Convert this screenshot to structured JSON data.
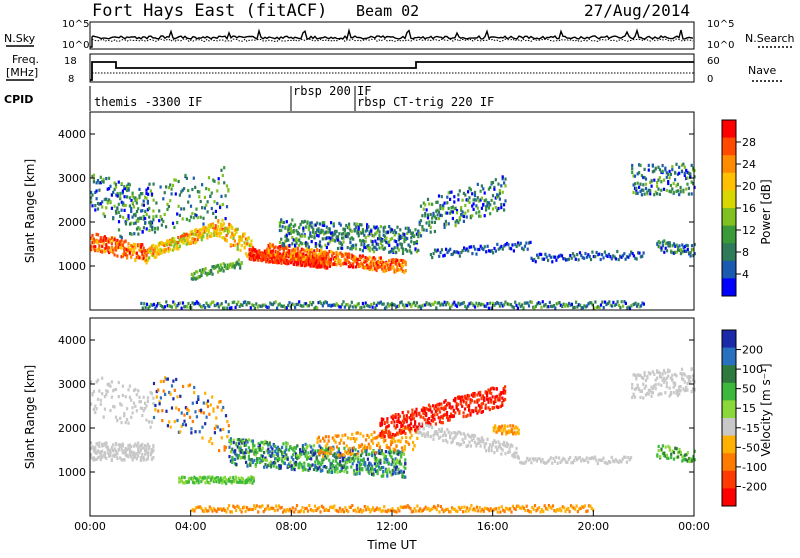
{
  "header": {
    "title": "Fort Hays East (fitACF)",
    "beam": "Beam 02",
    "date": "27/Aug/2014"
  },
  "top_panels": {
    "nsky_label": "N.Sky",
    "nsearch_label": "N.Search",
    "freq_label_1": "Freq.",
    "freq_label_2": "[MHz]",
    "nave_label": "Nave",
    "cpid_label": "CPID",
    "nsky_ticks": [
      "10^5",
      "10^0"
    ],
    "nsearch_ticks": [
      "10^5",
      "10^0"
    ],
    "freq_ticks": [
      "18",
      "8"
    ],
    "nave_ticks": [
      "60",
      "0"
    ]
  },
  "cpid_segments": [
    {
      "label": "themis -3300 IF",
      "start_hour": 0.0
    },
    {
      "label": "rbsp 200",
      "start_hour": 8.0
    },
    {
      "label": "IF",
      "start_hour": 10.25
    },
    {
      "label": "rbsp CT-trig 220 IF",
      "start_hour": 10.25
    }
  ],
  "chart_data": [
    {
      "type": "heatmap",
      "name": "power",
      "ylabel": "Slant Range [km]",
      "yticks": [
        "1000",
        "2000",
        "3000",
        "4000"
      ],
      "ylim": [
        0,
        4500
      ],
      "xlim_hours": [
        0,
        24
      ],
      "xticks": [
        "00:00",
        "04:00",
        "08:00",
        "12:00",
        "16:00",
        "20:00",
        "00:00"
      ],
      "colorbar_label": "Power [dB]",
      "colorbar_ticks": [
        "28",
        "24",
        "20",
        "16",
        "12",
        "8",
        "4"
      ],
      "colorbar_colors": [
        "#ff0000",
        "#ff4a00",
        "#ff8c00",
        "#ffc000",
        "#d8d800",
        "#80c020",
        "#3a9a3a",
        "#2e7a5a",
        "#1a5ab0",
        "#0000ff"
      ]
    },
    {
      "type": "heatmap",
      "name": "velocity",
      "ylabel": "Slant Range [km]",
      "yticks": [
        "1000",
        "2000",
        "3000",
        "4000"
      ],
      "ylim": [
        0,
        4500
      ],
      "xlim_hours": [
        0,
        24
      ],
      "xticks": [
        "00:00",
        "04:00",
        "08:00",
        "12:00",
        "16:00",
        "20:00",
        "00:00"
      ],
      "xlabel": "Time UT",
      "colorbar_label": "Velocity [m s⁻¹]",
      "colorbar_ticks": [
        "200",
        "100",
        "50",
        "15",
        "-15",
        "-50",
        "-100",
        "-200"
      ],
      "colorbar_colors": [
        "#1a2aa8",
        "#2a70c0",
        "#2e7a3e",
        "#3cb83c",
        "#8ad83a",
        "#c8c8c8",
        "#ffb000",
        "#ff7a00",
        "#ff3a00",
        "#ff0000"
      ]
    }
  ]
}
